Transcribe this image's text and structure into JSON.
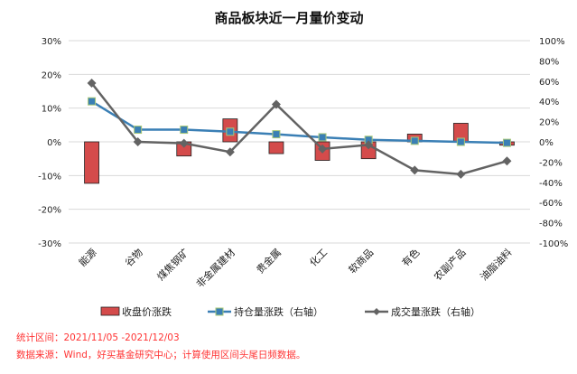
{
  "chart_data": {
    "type": "bar",
    "title": "商品板块近一月量价变动",
    "categories": [
      "能源",
      "谷物",
      "煤焦钢矿",
      "非金属建材",
      "贵金属",
      "化工",
      "软商品",
      "有色",
      "农副产品",
      "油脂油料"
    ],
    "left_axis": {
      "ylim": [
        -30,
        30
      ],
      "ticks": [
        "-30%",
        "-20%",
        "-10%",
        "0%",
        "10%",
        "20%",
        "30%"
      ],
      "tick_values": [
        -30,
        -20,
        -10,
        0,
        10,
        20,
        30
      ]
    },
    "right_axis": {
      "ylim": [
        -100,
        100
      ],
      "ticks": [
        "-100%",
        "-80%",
        "-60%",
        "-40%",
        "-20%",
        "0%",
        "20%",
        "40%",
        "60%",
        "80%",
        "100%"
      ],
      "tick_values": [
        -100,
        -80,
        -60,
        -40,
        -20,
        0,
        20,
        40,
        60,
        80,
        100
      ]
    },
    "grid": true,
    "legend_position": "bottom",
    "series": [
      {
        "name": "收盘价涨跌",
        "type": "bar",
        "axis": "left",
        "color": "#d44b4b",
        "values": [
          -12.3,
          0,
          -4.2,
          6.8,
          -3.5,
          -5.5,
          -5.0,
          2.3,
          5.5,
          -1.0
        ]
      },
      {
        "name": "持仓量涨跌（右轴）",
        "type": "line",
        "axis": "right",
        "color": "#3a7fb5",
        "values": [
          40,
          12,
          12,
          10,
          7.5,
          4.5,
          2,
          1,
          0,
          -1
        ]
      },
      {
        "name": "成交量涨跌（右轴）",
        "type": "line",
        "axis": "right",
        "color": "#636363",
        "values": [
          58,
          0,
          -1.5,
          -10,
          37,
          -7,
          -3,
          -28,
          -32,
          -19
        ]
      }
    ]
  },
  "notes": {
    "period": "统计区间：2021/11/05 -2021/12/03",
    "source": "数据来源：Wind，好买基金研究中心；计算使用区间头尾日频数据。"
  }
}
